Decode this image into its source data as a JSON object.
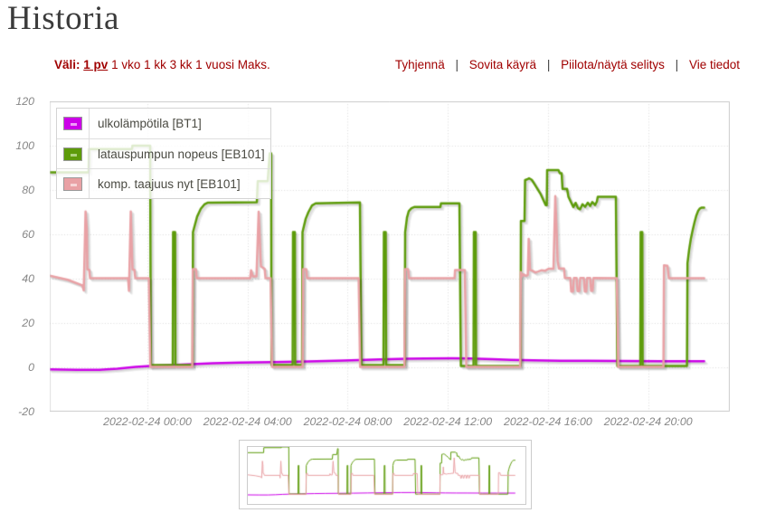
{
  "page_title": "Historia",
  "controls": {
    "range_label": "Väli:",
    "range_options": [
      {
        "label": "1 pv",
        "selected": true
      },
      {
        "label": "1 vko",
        "selected": false
      },
      {
        "label": "1 kk",
        "selected": false
      },
      {
        "label": "3 kk",
        "selected": false
      },
      {
        "label": "1 vuosi",
        "selected": false
      },
      {
        "label": "Maks.",
        "selected": false
      }
    ],
    "actions": [
      {
        "label": "Tyhjennä"
      },
      {
        "label": "Sovita käyrä"
      },
      {
        "label": "Piilota/näytä selitys"
      },
      {
        "label": "Vie tiedot"
      }
    ],
    "separator": "|",
    "accent_color": "#a00000"
  },
  "chart_data": {
    "type": "line",
    "title": "",
    "xlabel": "",
    "ylabel": "",
    "x_unit": "hours from 2022-02-24 00:00",
    "x_range": [
      -3.901,
      23.2617
    ],
    "x_gridlines": [
      0,
      4,
      8,
      12,
      16,
      20
    ],
    "x_axis_tick_labels": [
      "2022-02-24 00:00",
      "2022-02-24 04:00",
      "2022-02-24 08:00",
      "2022-02-24 12:00",
      "2022-02-24 16:00",
      "2022-02-24 20:00"
    ],
    "y_range": [
      -20,
      120
    ],
    "y_tick_step": 20,
    "y_axis_tick_labels": [
      "120",
      "100",
      "80",
      "60",
      "40",
      "20",
      "0",
      "-20"
    ],
    "grid": true,
    "grid_color": "#dcdcdc",
    "border_color": "#cccccc",
    "legend_position": "nw",
    "series": [
      {
        "name": "ulkolämpötila [BT1]",
        "color": "#cc00e8",
        "swatch_dash": "#ef9bf7",
        "points": [
          [
            -3.901,
            -0.9
          ],
          [
            -2.8174,
            -1.1
          ],
          [
            -1.9144,
            -1.1
          ],
          [
            -1.192,
            -0.6
          ],
          [
            -0.4696,
            0.2
          ],
          [
            0.2528,
            0.7
          ],
          [
            1.3365,
            1.2
          ],
          [
            2.6007,
            1.8
          ],
          [
            3.6843,
            2.1
          ],
          [
            4.9485,
            2.35
          ],
          [
            6.3934,
            2.65
          ],
          [
            7.8382,
            3.1
          ],
          [
            9.283,
            3.6
          ],
          [
            10.3666,
            3.85
          ],
          [
            11.089,
            4.0
          ],
          [
            12.1727,
            4.05
          ],
          [
            12.8951,
            4.0
          ],
          [
            13.7981,
            3.7
          ],
          [
            14.5205,
            3.4
          ],
          [
            15.4235,
            3.15
          ],
          [
            16.5071,
            3.0
          ],
          [
            17.5908,
            2.95
          ],
          [
            19.0356,
            2.85
          ],
          [
            20.4804,
            2.8
          ],
          [
            22.2359,
            2.8
          ]
        ]
      },
      {
        "name": "latauspumpun nopeus [EB101]",
        "color": "#5d9b0a",
        "swatch_dash": "#aed380",
        "points": [
          [
            -3.901,
            88
          ],
          [
            -2.3478,
            88
          ],
          [
            -2.3334,
            98.5
          ],
          [
            -0.6141,
            98.5
          ],
          [
            -0.5996,
            100
          ],
          [
            0.1084,
            100
          ],
          [
            0.1373,
            1
          ],
          [
            1.0114,
            1
          ],
          [
            1.0258,
            61
          ],
          [
            1.1053,
            61
          ],
          [
            1.1197,
            1
          ],
          [
            1.806,
            1
          ],
          [
            1.8205,
            61
          ],
          [
            1.9866,
            68
          ],
          [
            2.1311,
            71.5
          ],
          [
            2.2756,
            73.5
          ],
          [
            2.4201,
            74.3
          ],
          [
            4.3706,
            74.5
          ],
          [
            4.4067,
            84
          ],
          [
            4.804,
            84
          ],
          [
            4.8474,
            91
          ],
          [
            4.8835,
            96.5
          ],
          [
            4.9413,
            96.5
          ],
          [
            4.9558,
            1
          ],
          [
            5.801,
            1
          ],
          [
            5.8154,
            61
          ],
          [
            5.8877,
            61
          ],
          [
            5.9021,
            1
          ],
          [
            6.1766,
            1
          ],
          [
            6.1947,
            61
          ],
          [
            6.3211,
            67
          ],
          [
            6.4295,
            70
          ],
          [
            6.574,
            73
          ],
          [
            6.7184,
            74
          ],
          [
            8.4884,
            74.4
          ],
          [
            8.5461,
            1
          ],
          [
            9.4275,
            1
          ],
          [
            9.4455,
            61
          ],
          [
            9.5178,
            61
          ],
          [
            9.5358,
            1
          ],
          [
            10.2763,
            1
          ],
          [
            10.2944,
            61
          ],
          [
            10.3666,
            67.5
          ],
          [
            10.4389,
            70.5
          ],
          [
            10.5472,
            71.8
          ],
          [
            10.6556,
            72.3
          ],
          [
            11.7031,
            72.3
          ],
          [
            11.7248,
            74
          ],
          [
            12.4616,
            74
          ],
          [
            12.5194,
            0.6
          ],
          [
            13.0251,
            0.6
          ],
          [
            13.0396,
            61
          ],
          [
            13.1118,
            61
          ],
          [
            13.1262,
            0.6
          ],
          [
            14.9034,
            0.6
          ],
          [
            14.9178,
            66
          ],
          [
            15.0623,
            66
          ],
          [
            15.084,
            84.5
          ],
          [
            15.1707,
            84.8
          ],
          [
            15.2429,
            85.3
          ],
          [
            15.3513,
            84.6
          ],
          [
            15.4958,
            82
          ],
          [
            15.7125,
            78
          ],
          [
            15.9075,
            73.2
          ],
          [
            15.9509,
            73.2
          ],
          [
            15.9653,
            89
          ],
          [
            16.4168,
            89
          ],
          [
            16.471,
            87.6
          ],
          [
            16.5433,
            87.6
          ],
          [
            16.5794,
            80.5
          ],
          [
            16.76,
            80.5
          ],
          [
            16.8142,
            77
          ],
          [
            16.9045,
            74.8
          ],
          [
            17.0128,
            72.3
          ],
          [
            17.1031,
            74.2
          ],
          [
            17.1934,
            71.8
          ],
          [
            17.2837,
            71.3
          ],
          [
            17.374,
            73.6
          ],
          [
            17.4824,
            72.4
          ],
          [
            17.5908,
            74.3
          ],
          [
            17.6811,
            72.8
          ],
          [
            17.7714,
            74.6
          ],
          [
            17.8797,
            73.2
          ],
          [
            17.952,
            74.8
          ],
          [
            17.9881,
            76.9
          ],
          [
            18.7105,
            76.9
          ],
          [
            18.7683,
            0.6
          ],
          [
            19.6858,
            0.6
          ],
          [
            19.7002,
            61
          ],
          [
            19.7652,
            61
          ],
          [
            19.7797,
            0.6
          ],
          [
            21.5496,
            0.6
          ],
          [
            21.5712,
            47
          ],
          [
            21.6363,
            53
          ],
          [
            21.7085,
            58.2
          ],
          [
            21.7807,
            62
          ],
          [
            21.853,
            65.5
          ],
          [
            21.9252,
            68.5
          ],
          [
            21.9975,
            70.6
          ],
          [
            22.0697,
            71.7
          ],
          [
            22.1239,
            72
          ],
          [
            22.2359,
            72
          ]
        ]
      },
      {
        "name": "komp. taajuus nyt [EB101]",
        "color": "#e9a1a5",
        "swatch_dash": "#f6d6d8",
        "points": [
          [
            -3.901,
            41.3
          ],
          [
            -3.1786,
            39.5
          ],
          [
            -2.6007,
            37
          ],
          [
            -2.5429,
            34.7
          ],
          [
            -2.4707,
            70.3
          ],
          [
            -2.4201,
            62
          ],
          [
            -2.3984,
            44.3
          ],
          [
            -2.3262,
            44
          ],
          [
            -2.29,
            40.2
          ],
          [
            -0.773,
            40.2
          ],
          [
            -0.7369,
            34.5
          ],
          [
            -0.6646,
            70.3
          ],
          [
            -0.6141,
            50
          ],
          [
            -0.5924,
            44.2
          ],
          [
            -0.5201,
            44
          ],
          [
            -0.484,
            40.2
          ],
          [
            0.0578,
            40.2
          ],
          [
            0.1156,
            0.2
          ],
          [
            1.7916,
            0.2
          ],
          [
            1.8133,
            44.3
          ],
          [
            1.9361,
            44.3
          ],
          [
            1.9722,
            40.2
          ],
          [
            4.1033,
            40.2
          ],
          [
            4.1394,
            43.8
          ],
          [
            4.2117,
            41
          ],
          [
            4.3561,
            41
          ],
          [
            4.4428,
            70.2
          ],
          [
            4.5151,
            50
          ],
          [
            4.5368,
            45.5
          ],
          [
            4.6812,
            44.5
          ],
          [
            4.7174,
            40.2
          ],
          [
            4.9196,
            40.2
          ],
          [
            4.9774,
            0.2
          ],
          [
            6.1983,
            0.2
          ],
          [
            6.22,
            44.3
          ],
          [
            6.3428,
            44.3
          ],
          [
            6.3789,
            40.2
          ],
          [
            8.4378,
            40.2
          ],
          [
            8.4956,
            0.2
          ],
          [
            10.2655,
            0.2
          ],
          [
            10.2872,
            44.3
          ],
          [
            10.41,
            44.3
          ],
          [
            10.4461,
            40.2
          ],
          [
            12.2666,
            40.2
          ],
          [
            12.2882,
            43.9
          ],
          [
            12.6783,
            43.9
          ],
          [
            12.7361,
            0.2
          ],
          [
            14.8889,
            0.2
          ],
          [
            14.9106,
            43
          ],
          [
            14.9539,
            41
          ],
          [
            15.0262,
            42
          ],
          [
            15.0984,
            41.3
          ],
          [
            15.1923,
            41.5
          ],
          [
            15.2285,
            58
          ],
          [
            15.279,
            44
          ],
          [
            15.3874,
            43.5
          ],
          [
            15.4958,
            42.8
          ],
          [
            15.6041,
            43.2
          ],
          [
            15.7486,
            43.8
          ],
          [
            15.8931,
            43.6
          ],
          [
            16.0231,
            44.5
          ],
          [
            16.2182,
            44.5
          ],
          [
            16.2904,
            77.2
          ],
          [
            16.3482,
            60
          ],
          [
            16.3843,
            48
          ],
          [
            16.4349,
            44.6
          ],
          [
            16.6372,
            44.6
          ],
          [
            16.6733,
            40.3
          ],
          [
            16.89,
            40.3
          ],
          [
            16.9261,
            34.2
          ],
          [
            16.9984,
            34.2
          ],
          [
            17.0345,
            40.3
          ],
          [
            17.1429,
            40.3
          ],
          [
            17.179,
            34.4
          ],
          [
            17.2512,
            34.4
          ],
          [
            17.2873,
            40.3
          ],
          [
            17.4318,
            40.3
          ],
          [
            17.4679,
            34.2
          ],
          [
            17.5257,
            34.2
          ],
          [
            17.5619,
            40.3
          ],
          [
            17.6847,
            40.3
          ],
          [
            17.7208,
            34.5
          ],
          [
            17.7786,
            34.5
          ],
          [
            17.8147,
            40.3
          ],
          [
            18.7466,
            40.2
          ],
          [
            18.8044,
            0.2
          ],
          [
            20.6104,
            0.2
          ],
          [
            20.6321,
            46
          ],
          [
            20.7694,
            45.8
          ],
          [
            20.8272,
            40.2
          ],
          [
            22.2359,
            40.2
          ]
        ]
      }
    ]
  },
  "mini_chart": {
    "y_range": [
      -20,
      100
    ]
  }
}
